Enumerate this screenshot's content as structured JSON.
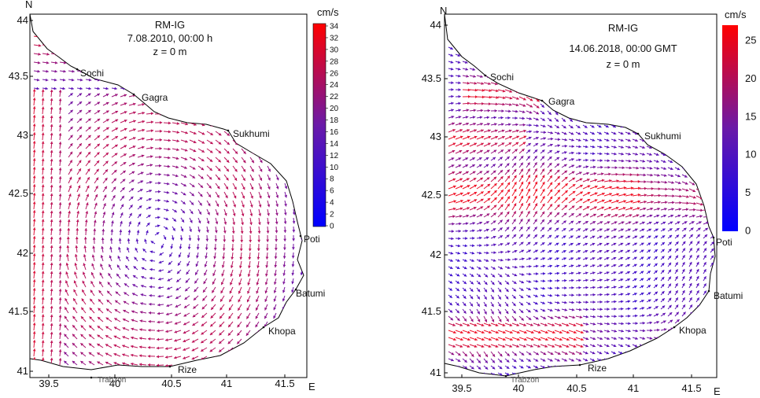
{
  "panels": [
    {
      "id": "left",
      "title": "RM-IG",
      "date": "7.08.2010, 00:00 h",
      "depth": "z = 0 m",
      "unit": "cm/s",
      "colorbar_ticks": [
        "34",
        "32",
        "30",
        "28",
        "26",
        "24",
        "22",
        "20",
        "18",
        "16",
        "14",
        "12",
        "10",
        "8",
        "6",
        "4",
        "2",
        "0"
      ],
      "x_ticks": [
        "39.5",
        "40",
        "40.5",
        "41",
        "41.5"
      ],
      "y_ticks": [
        "44",
        "43.5",
        "43",
        "42.5",
        "42",
        "41.5",
        "41"
      ],
      "north_label": "N",
      "east_label": "E",
      "cities": [
        "Sochi",
        "Gagra",
        "Sukhumi",
        "Poti",
        "Batumi",
        "Khopa",
        "Rize",
        "Trabzon"
      ]
    },
    {
      "id": "right",
      "title": "RM-IG",
      "date": "14.06.2018, 00:00 GMT",
      "depth": "z = 0 m",
      "unit": "cm/s",
      "colorbar_ticks": [
        "25",
        "20",
        "15",
        "10",
        "5",
        "0"
      ],
      "x_ticks": [
        "39.5",
        "40",
        "40.5",
        "41",
        "41.5"
      ],
      "y_ticks": [
        "44",
        "43.5",
        "43",
        "42.5",
        "42",
        "41.5",
        "41"
      ],
      "north_label": "N",
      "east_label": "E",
      "cities": [
        "Sochi",
        "Gagra",
        "Sukhumi",
        "Poti",
        "Batumi",
        "Khopa",
        "Rize",
        "Trabzon"
      ]
    }
  ],
  "colors": {
    "low": "#1a1aff",
    "mid": "#7a1a9a",
    "high": "#ff1a1a",
    "frame": "#000000"
  },
  "chart_data": {
    "type": "vector-field-map",
    "region": "south-eastern Black Sea",
    "lon_range": [
      39.35,
      41.7
    ],
    "lat_range": [
      41.0,
      44.05
    ],
    "speed_range_left_cm_s": [
      0,
      34
    ],
    "speed_range_right_cm_s": [
      0,
      25
    ]
  }
}
